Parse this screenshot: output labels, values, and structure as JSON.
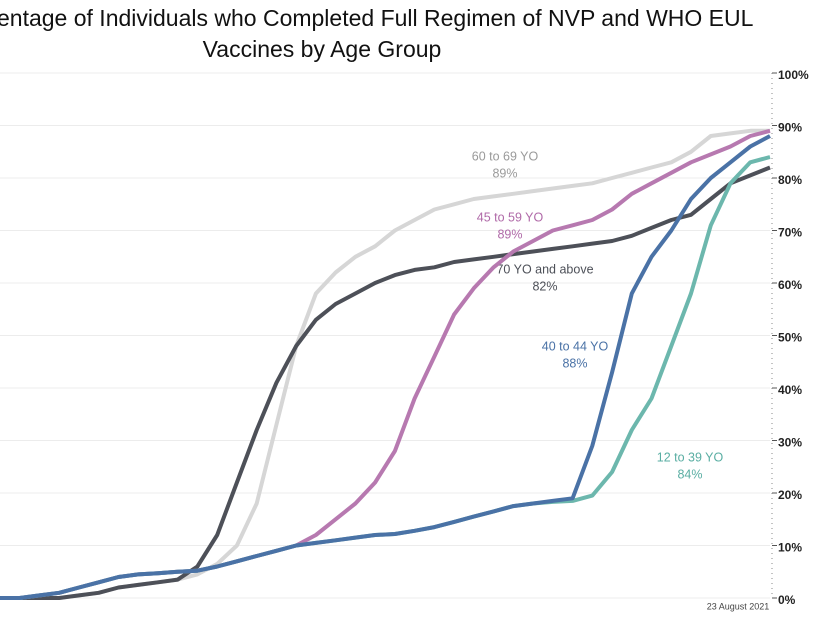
{
  "chart_data": {
    "type": "line",
    "title_lines": [
      "entage of Individuals who Completed Full Regimen of NVP and WHO EUL",
      "Vaccines by Age Group"
    ],
    "note": "23 August 2021",
    "ylim": [
      0,
      100
    ],
    "yticks": [
      {
        "value": 0,
        "label": "0%"
      },
      {
        "value": 10,
        "label": "10%"
      },
      {
        "value": 20,
        "label": "20%"
      },
      {
        "value": 30,
        "label": "30%"
      },
      {
        "value": 40,
        "label": "40%"
      },
      {
        "value": 50,
        "label": "50%"
      },
      {
        "value": 60,
        "label": "60%"
      },
      {
        "value": 70,
        "label": "70%"
      },
      {
        "value": 80,
        "label": "80%"
      },
      {
        "value": 90,
        "label": "90%"
      },
      {
        "value": 100,
        "label": "100%"
      }
    ],
    "grid": true,
    "series": [
      {
        "name": "60 to 69 YO",
        "annotation": "89%",
        "color": "#d6d6d6",
        "label_color": "#9a9a9a",
        "values": [
          0,
          0,
          0,
          0,
          0.5,
          1,
          2,
          2.5,
          3,
          3.5,
          4.5,
          6.5,
          10,
          18,
          33,
          48,
          58,
          62,
          65,
          67,
          70,
          72,
          74,
          75,
          76,
          76.5,
          77,
          77.5,
          78,
          78.5,
          79,
          80,
          81,
          82,
          83,
          85,
          88,
          88.5,
          89,
          89
        ]
      },
      {
        "name": "70 YO and above",
        "annotation": "82%",
        "color": "#4d5058",
        "label_color": "#4d5058",
        "values": [
          0,
          0,
          0,
          0,
          0.5,
          1,
          2,
          2.5,
          3,
          3.5,
          6,
          12,
          22,
          32,
          41,
          48,
          53,
          56,
          58,
          60,
          61.5,
          62.5,
          63,
          64,
          64.5,
          65,
          65.5,
          66,
          66.5,
          67,
          67.5,
          68,
          69,
          70.5,
          72,
          73,
          76,
          79,
          80.5,
          82
        ]
      },
      {
        "name": "45 to 59 YO",
        "annotation": "89%",
        "color": "#b779b0",
        "label_color": "#b06aa8",
        "values": [
          0,
          0,
          0.5,
          1,
          2,
          3,
          4,
          4.5,
          4.7,
          5,
          5.2,
          6,
          7,
          8,
          9,
          10,
          12,
          15,
          18,
          22,
          28,
          38,
          46,
          54,
          59,
          63,
          66,
          68,
          70,
          71,
          72,
          74,
          77,
          79,
          81,
          83,
          84.5,
          86,
          88,
          89
        ]
      },
      {
        "name": "12 to 39 YO",
        "annotation": "84%",
        "color": "#6cb7ad",
        "label_color": "#5aaea3",
        "values": [
          0,
          0,
          0.5,
          1,
          2,
          3,
          4,
          4.5,
          4.7,
          5,
          5.2,
          6,
          7,
          8,
          9,
          10,
          10.5,
          11,
          11.5,
          12,
          12.2,
          12.8,
          13.5,
          14.5,
          15.5,
          16.5,
          17.5,
          18,
          18.3,
          18.5,
          19.5,
          24,
          32,
          38,
          48,
          58,
          71,
          79,
          83,
          84
        ]
      },
      {
        "name": "40 to 44 YO",
        "annotation": "88%",
        "color": "#4a72a6",
        "label_color": "#4a72a6",
        "values": [
          0,
          0,
          0.5,
          1,
          2,
          3,
          4,
          4.5,
          4.7,
          5,
          5.2,
          6,
          7,
          8,
          9,
          10,
          10.5,
          11,
          11.5,
          12,
          12.2,
          12.8,
          13.5,
          14.5,
          15.5,
          16.5,
          17.5,
          18,
          18.5,
          19,
          29,
          43,
          58,
          65,
          70,
          76,
          80,
          83,
          86,
          88
        ]
      }
    ]
  }
}
